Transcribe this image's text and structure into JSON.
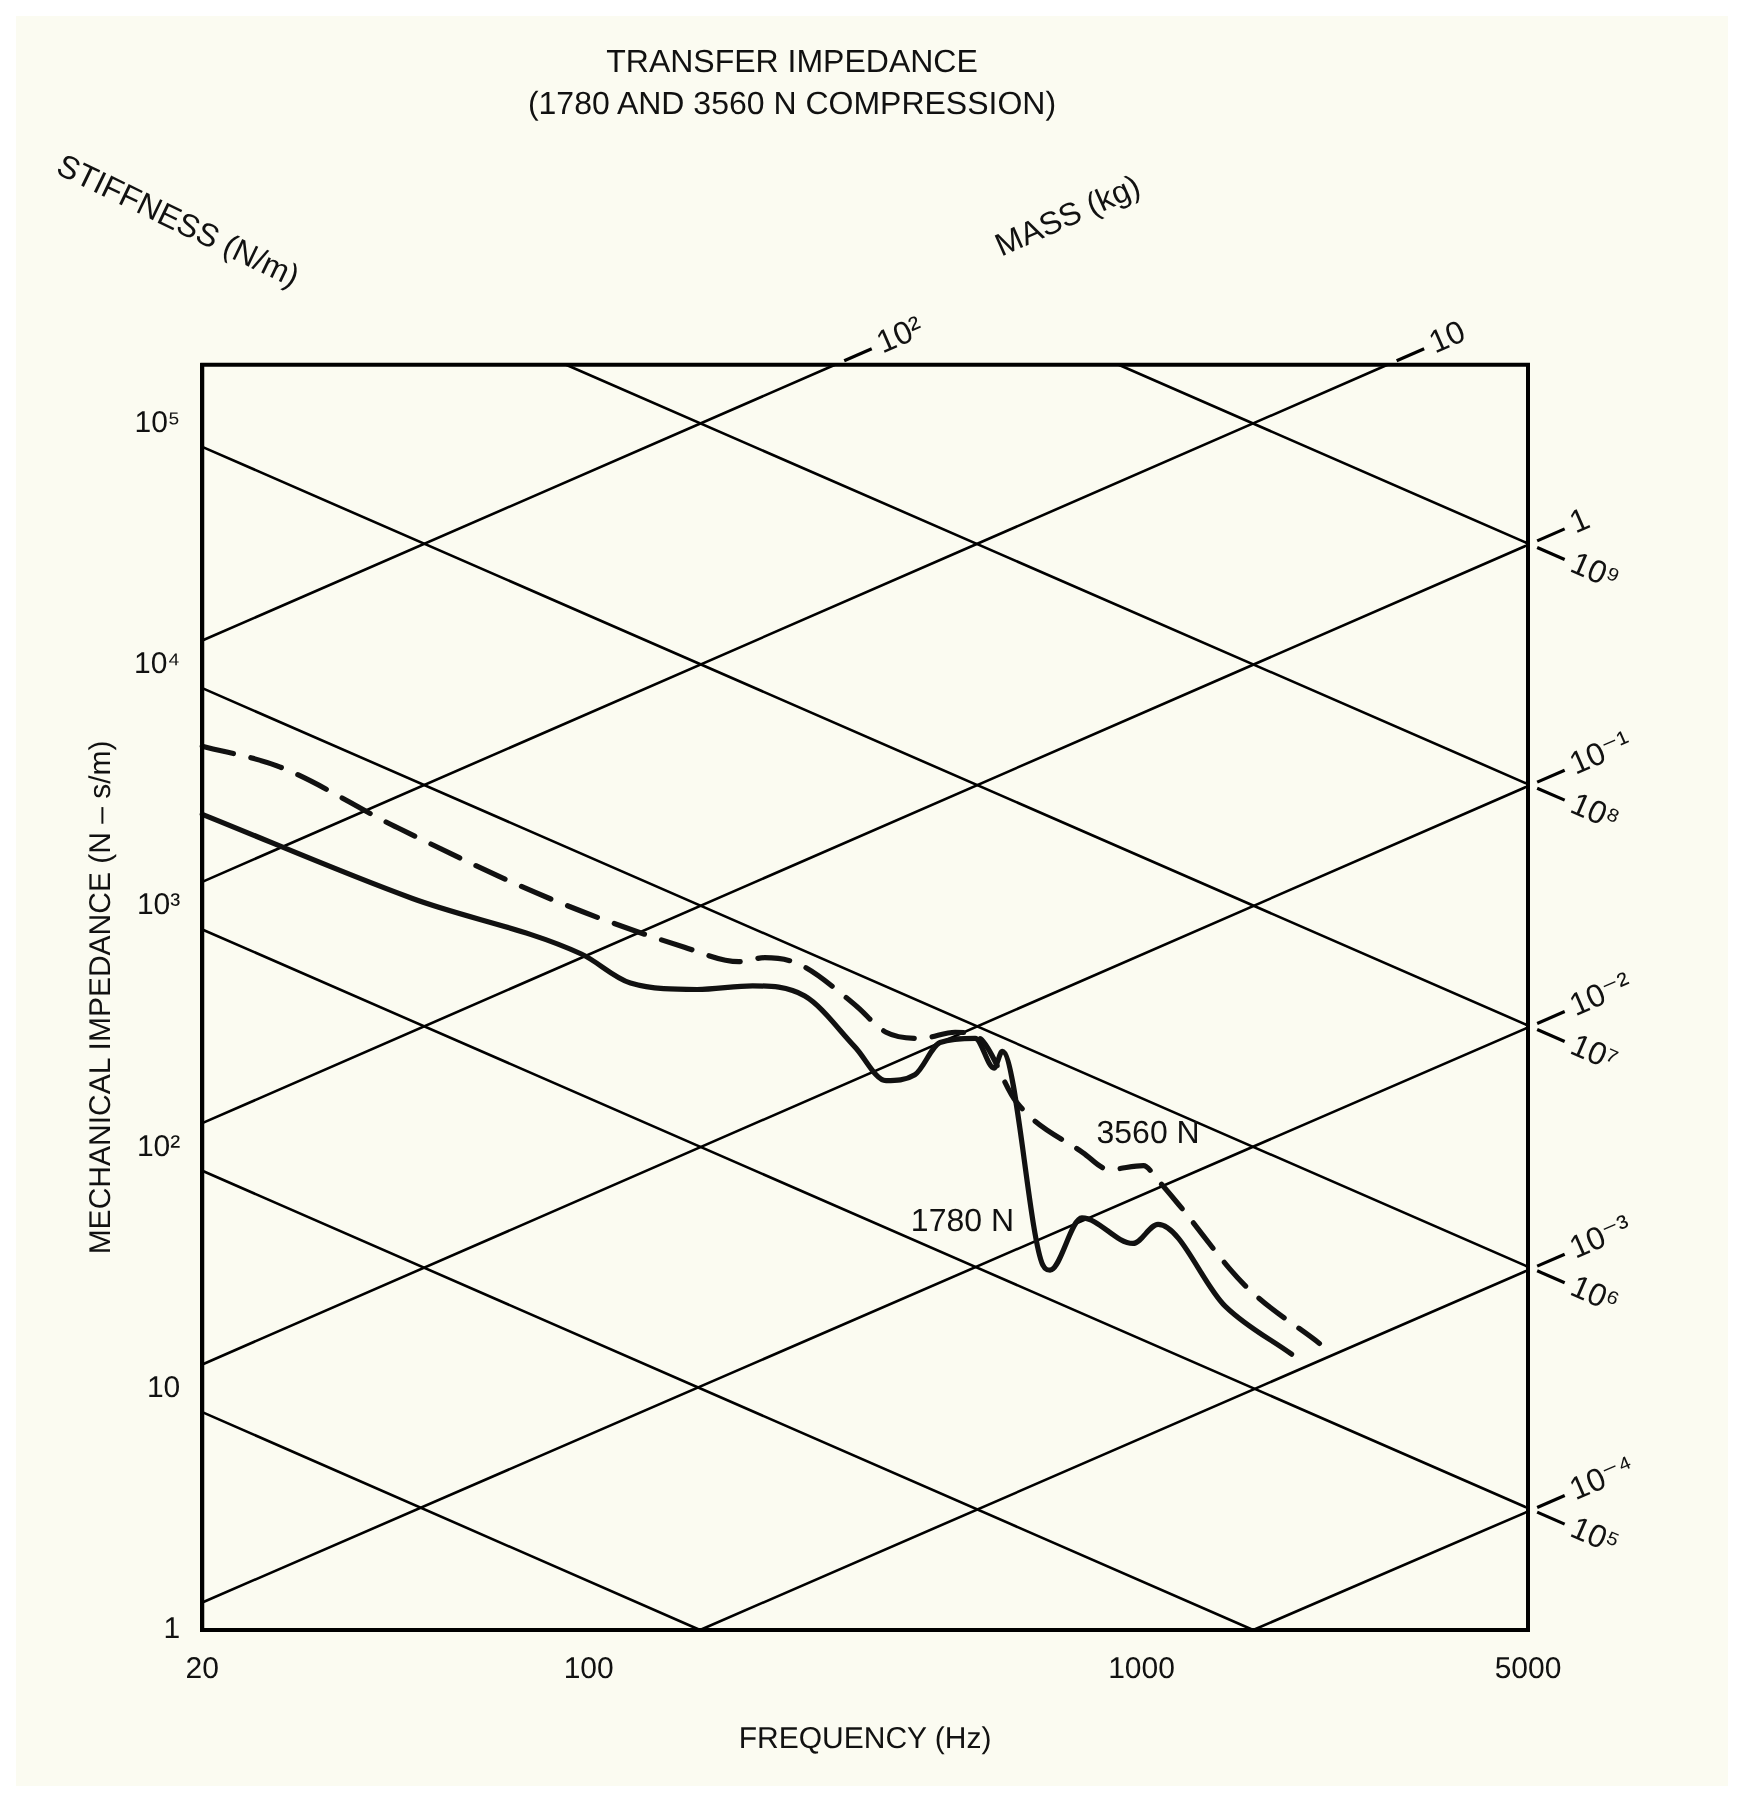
{
  "chart_data": {
    "type": "line",
    "title": "TRANSFER IMPEDANCE",
    "subtitle": "(1780 AND 3560 N COMPRESSION)",
    "xlabel": "FREQUENCY (Hz)",
    "ylabel": "MECHANICAL IMPEDANCE (N – s/m)",
    "log": "xy",
    "xlim": [
      20,
      5000
    ],
    "xticks": [
      20,
      100,
      1000,
      5000
    ],
    "ylim": [
      1,
      175000
    ],
    "yticks": [
      1,
      10,
      {
        "value": 100,
        "label": "10²"
      },
      {
        "value": 1000,
        "label": "10³"
      },
      {
        "value": 10000,
        "label": "10⁴"
      },
      {
        "value": 100000,
        "label": "10⁵"
      }
    ],
    "legend": false,
    "marker": "none",
    "series": [
      {
        "name": "3560 N",
        "color": "#111111",
        "line_style": "dashed",
        "x": [
          20,
          27.6,
          44.6,
          85,
          149,
          187,
          208,
          240,
          303,
          345,
          399,
          460,
          510,
          594,
          784,
          873,
          1008,
          1071,
          1167,
          1533,
          2098
        ],
        "values": [
          4600,
          3775,
          2140,
          1075,
          675,
          588,
          611,
          575,
          390,
          300,
          283,
          300,
          283,
          154,
          95,
          81,
          84,
          73,
          58,
          27,
          15.4
        ]
      },
      {
        "name": "1780 N",
        "color": "#111111",
        "line_style": "solid",
        "x": [
          20,
          48,
          97,
          119,
          157,
          198,
          246,
          303,
          345,
          389,
          432,
          500,
          541,
          560,
          663,
          683,
          780,
          965,
          1071,
          1416,
          1868
        ],
        "values": [
          2400,
          1075,
          633,
          480,
          451,
          467,
          424,
          261,
          189,
          200,
          272,
          283,
          213,
          250,
          32.5,
          31,
          51,
          40,
          48,
          22,
          13.9
        ]
      },
      {
        "color": "#000000",
        "x": [
          1592,
          5000
        ],
        "values": [
          1,
          3.1
        ]
      },
      {
        "color": "#000000",
        "x": [
          159,
          5000
        ],
        "values": [
          1,
          31
        ]
      },
      {
        "color": "#000000",
        "x": [
          20,
          5000
        ],
        "values": [
          1.3,
          314
        ]
      },
      {
        "color": "#000000",
        "x": [
          20,
          5000
        ],
        "values": [
          12.6,
          3140
        ]
      },
      {
        "color": "#000000",
        "x": [
          20,
          5000
        ],
        "values": [
          126,
          31400
        ]
      },
      {
        "color": "#000000",
        "x": [
          20,
          2785
        ],
        "values": [
          1260,
          175000
        ]
      },
      {
        "color": "#000000",
        "x": [
          20,
          279
        ],
        "values": [
          12600,
          175000
        ]
      },
      {
        "color": "#000000",
        "x": [
          20,
          159
        ],
        "values": [
          8,
          1
        ]
      },
      {
        "color": "#000000",
        "x": [
          20,
          1592
        ],
        "values": [
          80,
          1
        ]
      },
      {
        "color": "#000000",
        "x": [
          20,
          5000
        ],
        "values": [
          800,
          3.2
        ]
      },
      {
        "color": "#000000",
        "x": [
          20,
          5000
        ],
        "values": [
          8000,
          32
        ]
      },
      {
        "color": "#000000",
        "x": [
          20,
          5000
        ],
        "values": [
          80000,
          320
        ]
      },
      {
        "color": "#000000",
        "x": [
          91,
          5000
        ],
        "values": [
          175000,
          3200
        ]
      },
      {
        "color": "#000000",
        "x": [
          909,
          5000
        ],
        "values": [
          175000,
          31800
        ]
      }
    ],
    "annotations": [
      "STIFFNESS (N/m)",
      "MASS (kg)",
      {
        "text": "10",
        "x": 2785,
        "y": 175000
      },
      {
        "text": "10²",
        "x": 279,
        "y": 175000
      },
      {
        "text": "1",
        "x": 5000,
        "y": 31400
      },
      {
        "text": "10⁻¹",
        "x": 5000,
        "y": 3140
      },
      {
        "text": "10⁻²",
        "x": 5000,
        "y": 314
      },
      {
        "text": "10⁻³",
        "x": 5000,
        "y": 31
      },
      {
        "text": "10⁻⁴",
        "x": 5000,
        "y": 3.1
      },
      {
        "text": "10⁹",
        "x": 5000,
        "y": 31800
      },
      {
        "text": "10⁸",
        "x": 5000,
        "y": 3200
      },
      {
        "text": "10⁷",
        "x": 5000,
        "y": 320
      },
      {
        "text": "10⁶",
        "x": 5000,
        "y": 32
      },
      {
        "text": "10⁵",
        "x": 5000,
        "y": 3.2
      }
    ]
  }
}
